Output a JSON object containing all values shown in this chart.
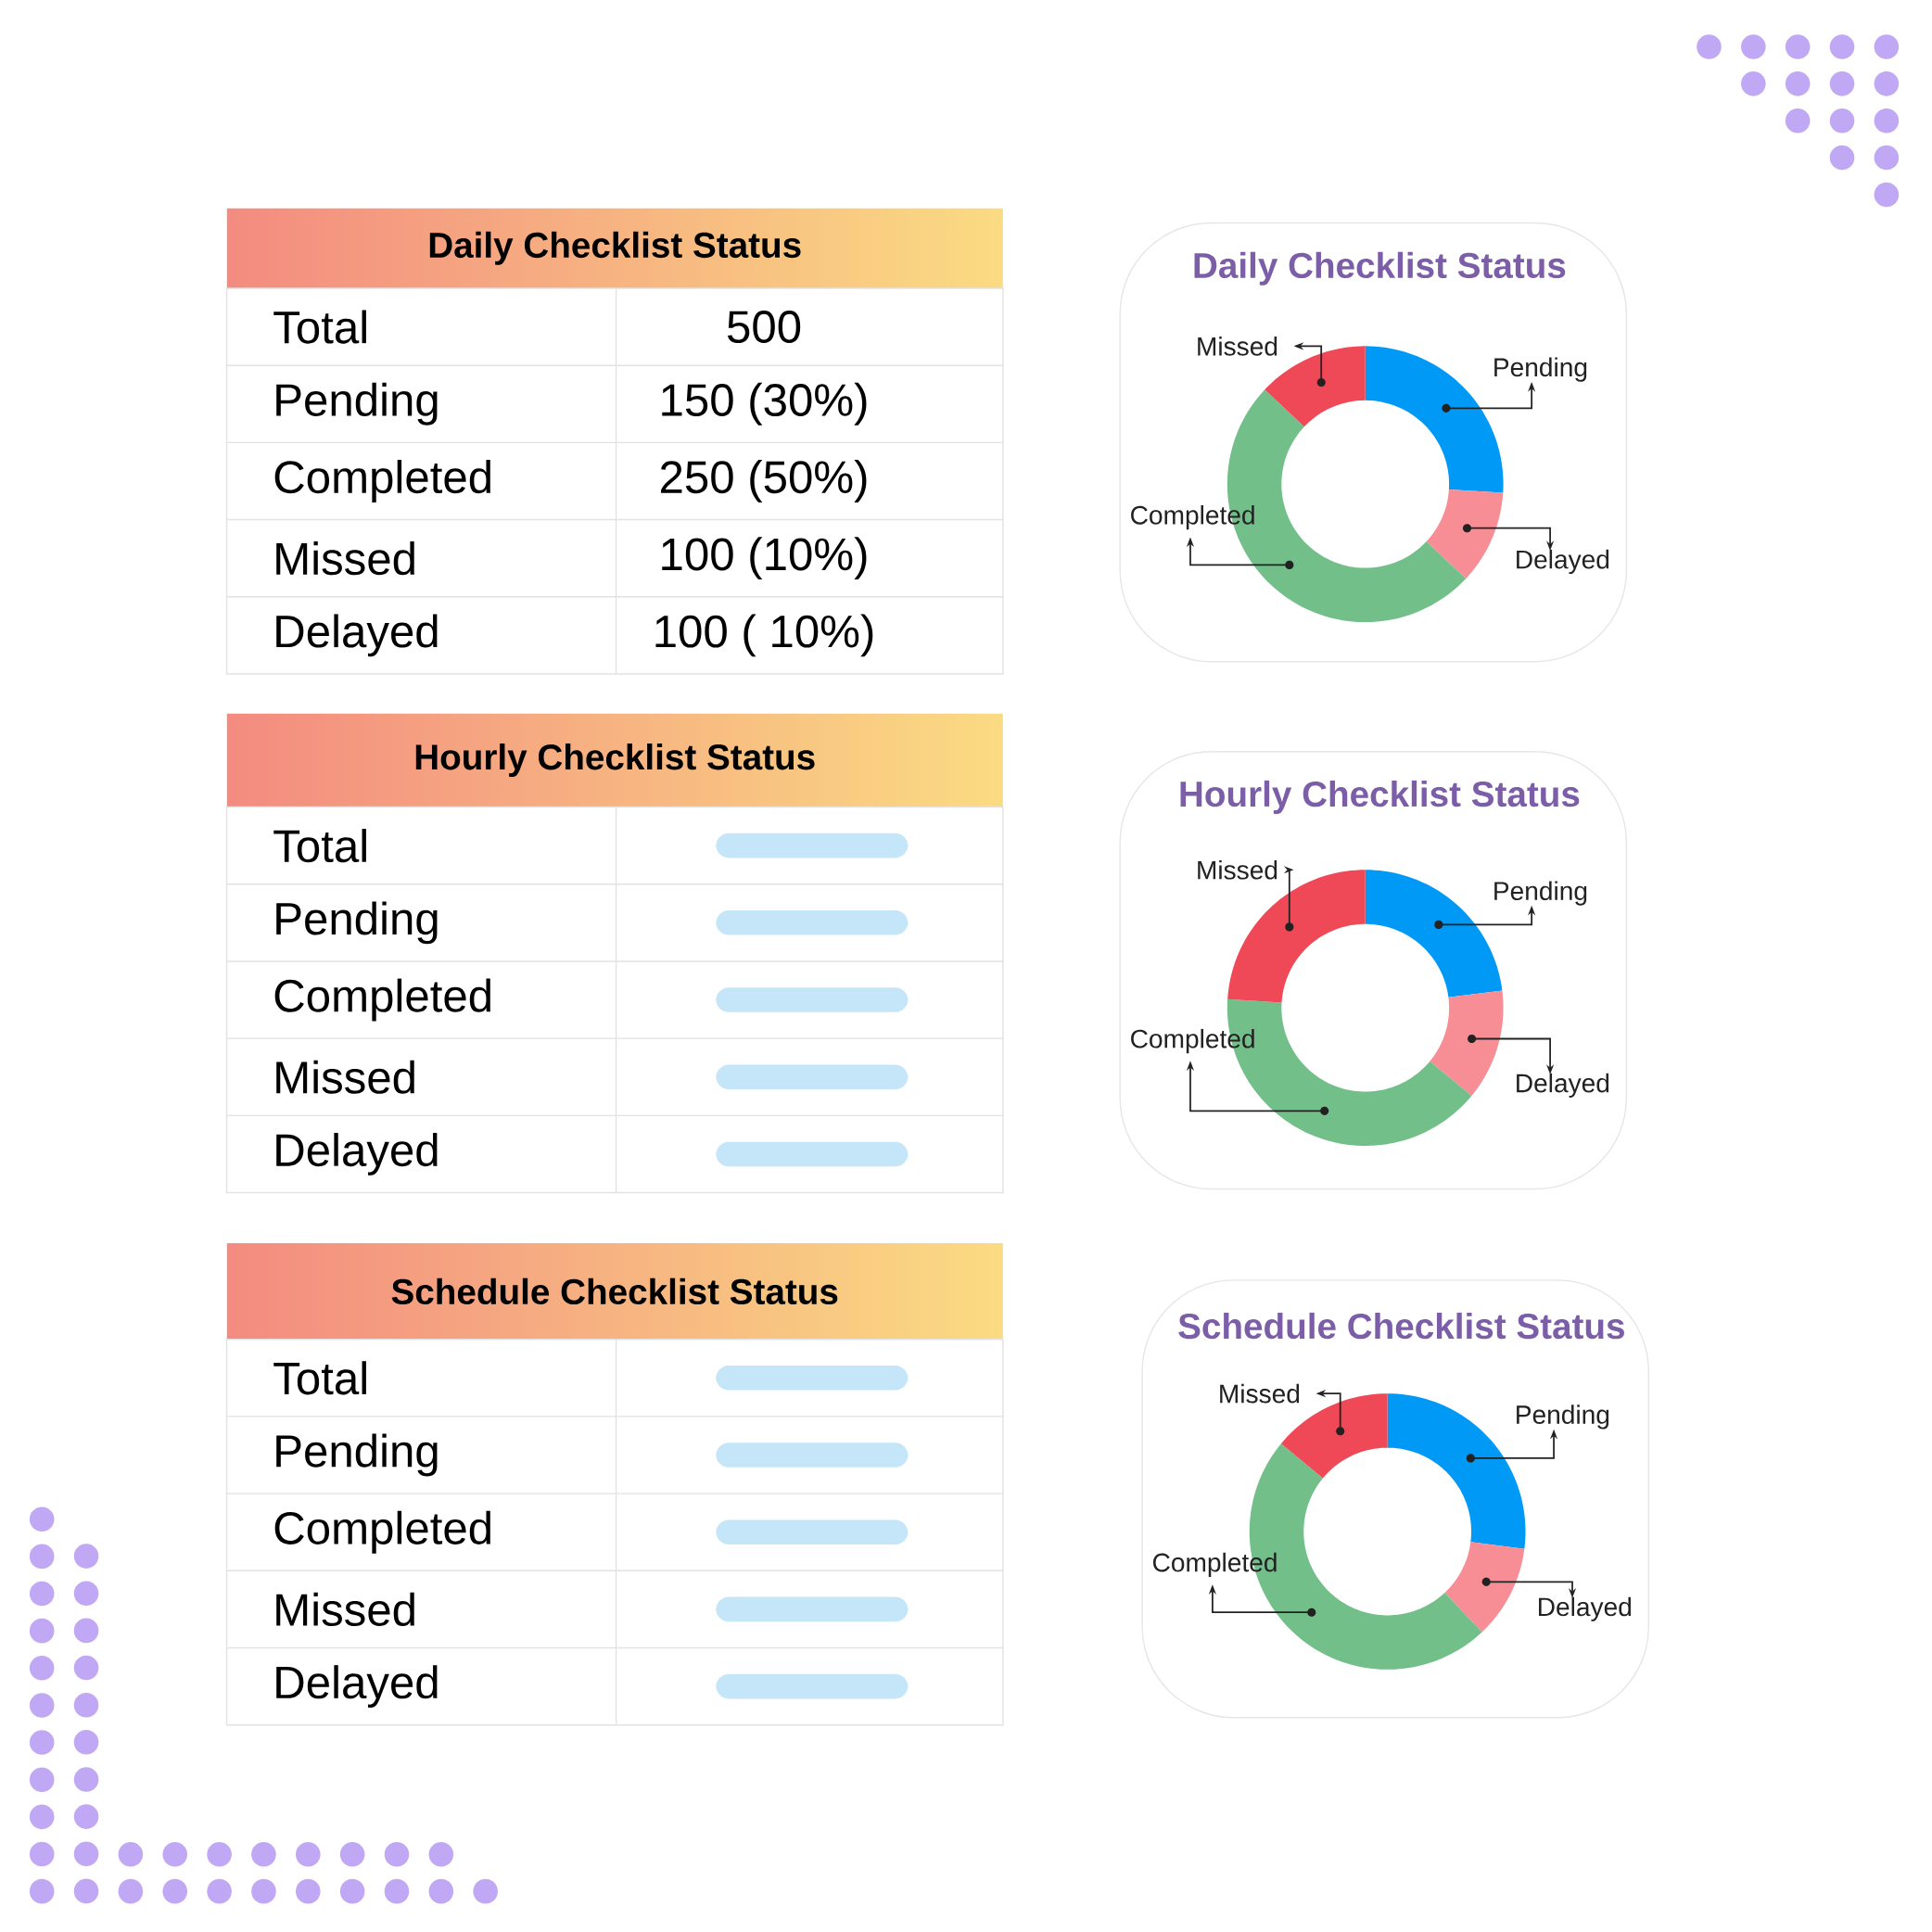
{
  "chart_data": [
    {
      "type": "other",
      "title": "Daily Checklist Status",
      "categories": [
        "Total",
        "Pending",
        "Completed",
        "Missed",
        "Delayed"
      ],
      "value_labels": [
        "500",
        "150 (30%)",
        "250 (50%)",
        "100 (10%)",
        "100 ( 10%)"
      ]
    },
    {
      "type": "donut",
      "title": "Daily Checklist Status",
      "categories": [
        "Pending",
        "Delayed",
        "Completed",
        "Missed"
      ],
      "values": [
        26,
        11,
        50,
        13
      ],
      "colors": [
        "#0099f5",
        "#f78e96",
        "#72bf8a",
        "#ef4857"
      ]
    },
    {
      "type": "other",
      "title": "Hourly Checklist Status",
      "categories": [
        "Total",
        "Pending",
        "Completed",
        "Missed",
        "Delayed"
      ]
    },
    {
      "type": "donut",
      "title": "Hourly Checklist Status",
      "categories": [
        "Pending",
        "Delayed",
        "Completed",
        "Missed"
      ],
      "values": [
        23,
        13,
        40,
        24
      ],
      "colors": [
        "#0099f5",
        "#f78e96",
        "#72bf8a",
        "#ef4857"
      ]
    },
    {
      "type": "other",
      "title": "Schedule Checklist Status",
      "categories": [
        "Total",
        "Pending",
        "Completed",
        "Missed",
        "Delayed"
      ]
    },
    {
      "type": "donut",
      "title": "Schedule Checklist Status",
      "categories": [
        "Pending",
        "Delayed",
        "Completed",
        "Missed"
      ],
      "values": [
        27,
        11,
        48,
        14
      ],
      "colors": [
        "#0099f5",
        "#f78e96",
        "#72bf8a",
        "#ef4857"
      ]
    }
  ]
}
